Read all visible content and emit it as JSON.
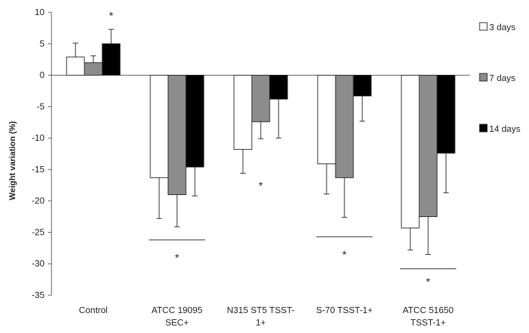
{
  "chart_data": {
    "type": "bar",
    "title": "",
    "xlabel": "",
    "ylabel": "Weight variation (%)",
    "ylim": [
      -35,
      10
    ],
    "yticks": [
      10,
      5,
      0,
      -5,
      -10,
      -15,
      -20,
      -25,
      -30,
      -35
    ],
    "categories": [
      [
        "Control"
      ],
      [
        "ATCC 19095",
        "SEC+"
      ],
      [
        "N315 ST5 TSST-",
        "1+"
      ],
      [
        "S-70 TSST-1+"
      ],
      [
        "ATCC 51650",
        "TSST-1+"
      ]
    ],
    "series": [
      {
        "name": "3 days",
        "color": "#ffffff",
        "values": [
          2.9,
          -16.3,
          -11.8,
          -14.1,
          -24.3
        ],
        "errors": [
          2.2,
          6.5,
          3.8,
          4.8,
          3.5
        ]
      },
      {
        "name": "7 days",
        "color": "#8c8c8c",
        "values": [
          2.0,
          -19.0,
          -7.4,
          -16.3,
          -22.5
        ],
        "errors": [
          1.1,
          5.1,
          2.7,
          6.3,
          6.0
        ]
      },
      {
        "name": "14 days",
        "color": "#000000",
        "values": [
          5.0,
          -14.6,
          -3.8,
          -3.3,
          -12.4
        ],
        "errors": [
          2.3,
          4.6,
          6.2,
          4.0,
          6.3
        ]
      }
    ],
    "legend_position": "right",
    "grid": false,
    "annotations": [
      {
        "text": "*",
        "category": 0,
        "series": 2,
        "y": 9.5
      },
      {
        "text": "*",
        "category": 2,
        "y": -17.5
      },
      {
        "text": "*",
        "category": 1,
        "y": -29.0,
        "bracket_y": -26.2,
        "bracket_span": "group"
      },
      {
        "text": "*",
        "category": 3,
        "y": -28.5,
        "bracket_y": -25.7,
        "bracket_span": "group"
      },
      {
        "text": "*",
        "category": 4,
        "y": -32.8,
        "bracket_y": -30.8,
        "bracket_span": "group"
      }
    ]
  }
}
